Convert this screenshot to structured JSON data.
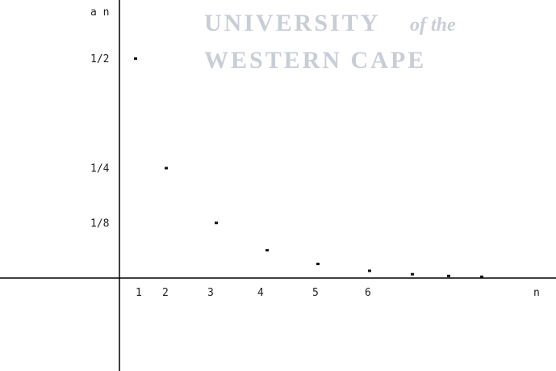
{
  "watermark": {
    "line1": "UNIVERSITY",
    "line1_italic": "of the",
    "line2": "WESTERN CAPE",
    "color": "#c9cdd6"
  },
  "chart_data": {
    "type": "scatter",
    "title": "",
    "xlabel": "n",
    "ylabel": "a n",
    "x_ticks": [
      "1",
      "2",
      "3",
      "4",
      "5",
      "6"
    ],
    "y_ticks": [
      "1/2",
      "1/4",
      "1/8"
    ],
    "xlim": [
      0,
      9.6
    ],
    "ylim": [
      0,
      0.55
    ],
    "grid": false,
    "series": [
      {
        "x": [
          1,
          2,
          3,
          4,
          5,
          6,
          7,
          8,
          9
        ],
        "y": [
          0.5,
          0.25,
          0.125,
          0.0625,
          0.03125,
          0.015625,
          0.0078125,
          0.00390625,
          0.001953125
        ]
      }
    ]
  }
}
